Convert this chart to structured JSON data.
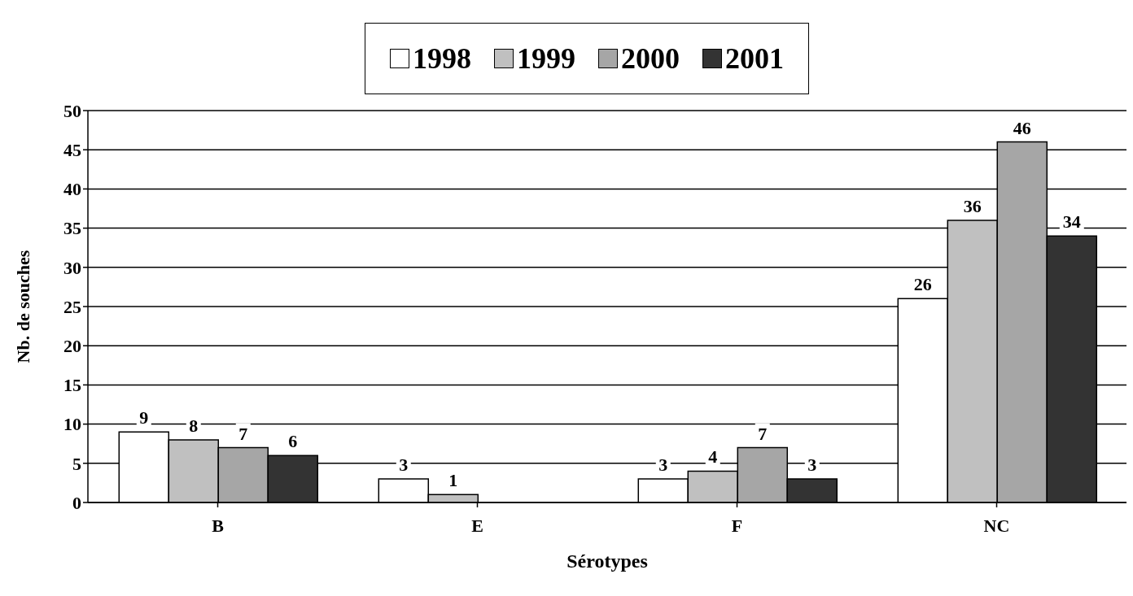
{
  "chart_data": {
    "type": "bar",
    "xlabel": "Sérotypes",
    "ylabel": "Nb. de souches",
    "categories": [
      "B",
      "E",
      "F",
      "NC"
    ],
    "series": [
      {
        "name": "1998",
        "color": "#ffffff",
        "values": [
          9,
          3,
          3,
          26
        ]
      },
      {
        "name": "1999",
        "color": "#c0c0c0",
        "values": [
          8,
          1,
          4,
          36
        ]
      },
      {
        "name": "2000",
        "color": "#a6a6a6",
        "values": [
          7,
          null,
          7,
          46
        ]
      },
      {
        "name": "2001",
        "color": "#333333",
        "values": [
          6,
          null,
          3,
          34
        ]
      }
    ],
    "ylim": [
      0,
      50
    ],
    "yticks": [
      0,
      5,
      10,
      15,
      20,
      25,
      30,
      35,
      40,
      45,
      50
    ],
    "grid": "y",
    "legend": "top",
    "data_labels": true
  }
}
